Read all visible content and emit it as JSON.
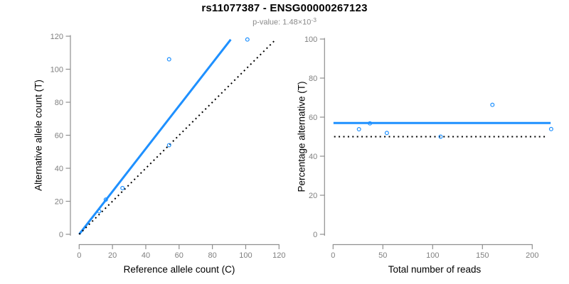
{
  "header": {
    "title": "rs11077387 - ENSG00000267123",
    "pvalue_label": "p-value:",
    "pvalue_value": " 1.48",
    "pvalue_times": "×10",
    "pvalue_exponent": "-3"
  },
  "colors": {
    "accent_blue": "#1E90FF",
    "line_black": "#000000",
    "axis_gray": "#8f8f8f",
    "tick_label_gray": "#7f7f7f",
    "subtitle_gray": "#8a8a8a"
  },
  "chart_data": [
    {
      "type": "scatter",
      "panel": "left",
      "xlabel": "Reference allele count (C)",
      "ylabel": "Alternative allele count (T)",
      "xlim": [
        0,
        120
      ],
      "ylim": [
        0,
        120
      ],
      "xticks": [
        0,
        20,
        40,
        60,
        80,
        100,
        120
      ],
      "yticks": [
        0,
        20,
        40,
        60,
        80,
        100,
        120
      ],
      "grid": false,
      "legend": null,
      "points": [
        [
          12,
          14
        ],
        [
          16,
          21
        ],
        [
          26,
          28
        ],
        [
          54,
          54
        ],
        [
          54,
          106
        ],
        [
          101,
          118
        ]
      ],
      "lines": [
        {
          "name": "fitted-ratio-line",
          "style": "solid",
          "color_key": "blue",
          "x": [
            0,
            91
          ],
          "y": [
            0,
            118
          ]
        },
        {
          "name": "identity-line",
          "style": "dotted",
          "color_key": "black",
          "x": [
            0,
            118.3
          ],
          "y": [
            0,
            118.3
          ]
        }
      ]
    },
    {
      "type": "scatter",
      "panel": "right",
      "xlabel": "Total number of reads",
      "ylabel": "Percentage alternative (T)",
      "xlim": [
        0,
        200
      ],
      "ylim": [
        0,
        100
      ],
      "xticks": [
        0,
        50,
        100,
        150,
        200
      ],
      "yticks": [
        0,
        20,
        40,
        60,
        80,
        100
      ],
      "grid": false,
      "legend": null,
      "points": [
        [
          26,
          53.8
        ],
        [
          37,
          56.8
        ],
        [
          54,
          51.9
        ],
        [
          108,
          50
        ],
        [
          160,
          66.3
        ],
        [
          219,
          53.9
        ]
      ],
      "lines": [
        {
          "name": "fitted-percentage-line",
          "style": "solid",
          "color_key": "blue",
          "x": [
            0.4,
            218.5
          ],
          "y": [
            57,
            57
          ]
        },
        {
          "name": "null-percentage-line",
          "style": "dotted",
          "color_key": "black",
          "x": [
            1,
            215
          ],
          "y": [
            50,
            50
          ]
        }
      ]
    }
  ]
}
